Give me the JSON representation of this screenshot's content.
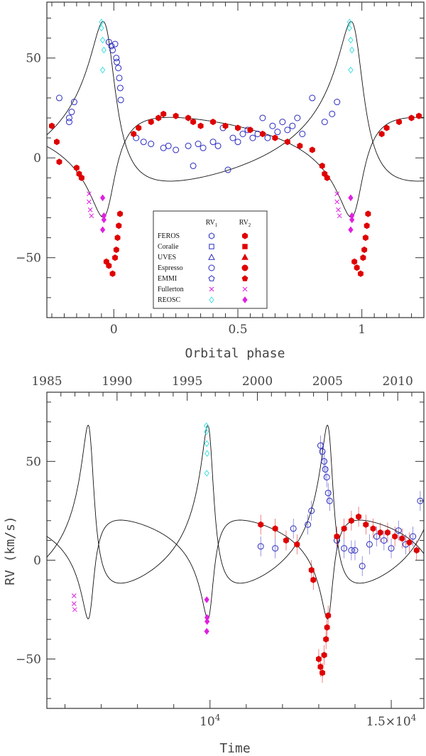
{
  "colors": {
    "blue": "#2a2ac0",
    "red": "#e00000",
    "magenta": "#e020e0",
    "cyan": "#40e0e0",
    "axis": "#333333",
    "curve": "#111111"
  },
  "chart_data": [
    {
      "type": "scatter",
      "id": "phase",
      "title": "",
      "xlabel": "Orbital phase",
      "ylabel": "",
      "xlim": [
        -0.27,
        1.25
      ],
      "ylim": [
        -80,
        78
      ],
      "xticks": [
        0,
        0.5,
        1
      ],
      "xtick_labels": [
        "0",
        "0.5",
        "1"
      ],
      "yticks": [
        -50,
        0,
        50
      ],
      "ytick_labels": [
        "−50",
        "0",
        "50"
      ],
      "legend": {
        "position": "bottom-center",
        "col1_header": "RV",
        "col1_sub": "1",
        "col2_header": "RV",
        "col2_sub": "2",
        "entries": [
          {
            "name": "FEROS",
            "shape": "hexagon",
            "color": "blue",
            "color2": "red"
          },
          {
            "name": "Coralie",
            "shape": "square",
            "color": "blue",
            "color2": "red"
          },
          {
            "name": "UVES",
            "shape": "triangle",
            "color": "blue",
            "color2": "red"
          },
          {
            "name": "Espresso",
            "shape": "circle",
            "color": "blue",
            "color2": "red"
          },
          {
            "name": "EMMI",
            "shape": "pentagon",
            "color": "blue",
            "color2": "red"
          },
          {
            "name": "Fullerton",
            "shape": "cross",
            "color": "magenta",
            "color2": "magenta"
          },
          {
            "name": "REOSC",
            "shape": "diamond",
            "color": "cyan",
            "color2": "magenta"
          }
        ]
      },
      "series": [
        {
          "name": "RV1",
          "color": "blue",
          "filled": false,
          "points": [
            [
              -0.22,
              30
            ],
            [
              -0.18,
              20
            ],
            [
              -0.18,
              18
            ],
            [
              -0.17,
              23
            ],
            [
              -0.16,
              28
            ],
            [
              -0.02,
              58
            ],
            [
              -0.01,
              56
            ],
            [
              -0.005,
              54
            ],
            [
              0.005,
              57
            ],
            [
              0.01,
              50
            ],
            [
              0.012,
              48
            ],
            [
              0.018,
              45
            ],
            [
              0.022,
              40
            ],
            [
              0.026,
              35
            ],
            [
              0.028,
              29
            ],
            [
              0.09,
              10
            ],
            [
              0.12,
              8
            ],
            [
              0.15,
              7
            ],
            [
              0.2,
              5
            ],
            [
              0.22,
              6
            ],
            [
              0.25,
              4
            ],
            [
              0.3,
              6
            ],
            [
              0.32,
              -4
            ],
            [
              0.34,
              7
            ],
            [
              0.36,
              5
            ],
            [
              0.4,
              8
            ],
            [
              0.42,
              6
            ],
            [
              0.44,
              15
            ],
            [
              0.46,
              -6
            ],
            [
              0.48,
              10
            ],
            [
              0.5,
              8
            ],
            [
              0.52,
              12
            ],
            [
              0.54,
              14
            ],
            [
              0.56,
              10
            ],
            [
              0.58,
              12
            ],
            [
              0.6,
              20
            ],
            [
              0.62,
              10
            ],
            [
              0.64,
              16
            ],
            [
              0.66,
              13
            ],
            [
              0.68,
              18
            ],
            [
              0.7,
              14
            ],
            [
              0.72,
              16
            ],
            [
              0.74,
              20
            ],
            [
              0.76,
              12
            ],
            [
              0.8,
              30
            ],
            [
              0.85,
              18
            ],
            [
              0.88,
              22
            ],
            [
              0.9,
              28
            ]
          ]
        },
        {
          "name": "RV2",
          "color": "red",
          "filled": true,
          "points": [
            [
              -0.25,
              16
            ],
            [
              -0.23,
              8
            ],
            [
              -0.22,
              -2
            ],
            [
              -0.15,
              -5
            ],
            [
              -0.14,
              -8
            ],
            [
              -0.13,
              -10
            ],
            [
              -0.03,
              -52
            ],
            [
              -0.02,
              -54
            ],
            [
              -0.005,
              -58
            ],
            [
              0.005,
              -50
            ],
            [
              0.01,
              -46
            ],
            [
              0.015,
              -40
            ],
            [
              0.02,
              -34
            ],
            [
              0.025,
              -28
            ],
            [
              0.08,
              12
            ],
            [
              0.1,
              15
            ],
            [
              0.15,
              18
            ],
            [
              0.18,
              20
            ],
            [
              0.2,
              22
            ],
            [
              0.25,
              21
            ],
            [
              0.3,
              20
            ],
            [
              0.32,
              18
            ],
            [
              0.35,
              16
            ],
            [
              0.4,
              18
            ],
            [
              0.45,
              16
            ],
            [
              0.5,
              15
            ],
            [
              0.55,
              14
            ],
            [
              0.6,
              12
            ],
            [
              0.65,
              10
            ],
            [
              0.7,
              8
            ],
            [
              0.75,
              6
            ],
            [
              0.8,
              4
            ],
            [
              0.84,
              -4
            ],
            [
              0.85,
              -8
            ],
            [
              0.86,
              -10
            ],
            [
              0.97,
              -52
            ],
            [
              0.98,
              -55
            ],
            [
              0.995,
              -58
            ],
            [
              1.005,
              -50
            ],
            [
              1.01,
              -46
            ],
            [
              1.015,
              -40
            ],
            [
              1.02,
              -34
            ],
            [
              1.025,
              -28
            ],
            [
              1.08,
              12
            ],
            [
              1.1,
              15
            ],
            [
              1.15,
              18
            ],
            [
              1.2,
              20
            ],
            [
              1.23,
              21
            ]
          ]
        },
        {
          "name": "Fullerton",
          "color": "magenta",
          "shape": "cross",
          "points": [
            [
              -0.1,
              -18
            ],
            [
              -0.1,
              -22
            ],
            [
              -0.095,
              -26
            ],
            [
              -0.09,
              -29
            ],
            [
              0.9,
              -18
            ],
            [
              0.9,
              -22
            ],
            [
              0.905,
              -26
            ],
            [
              0.91,
              -29
            ]
          ]
        },
        {
          "name": "REOSC RV1",
          "color": "cyan",
          "shape": "diamond",
          "points": [
            [
              -0.05,
              68
            ],
            [
              -0.05,
              65
            ],
            [
              -0.045,
              59
            ],
            [
              -0.04,
              54
            ],
            [
              -0.045,
              44
            ],
            [
              0.95,
              68
            ],
            [
              0.95,
              65
            ],
            [
              0.955,
              59
            ],
            [
              0.96,
              54
            ],
            [
              0.955,
              44
            ]
          ]
        },
        {
          "name": "REOSC RV2",
          "color": "magenta",
          "shape": "diamond-filled",
          "points": [
            [
              -0.045,
              -20
            ],
            [
              -0.04,
              -29
            ],
            [
              -0.04,
              -31
            ],
            [
              -0.045,
              -36
            ],
            [
              0.955,
              -20
            ],
            [
              0.96,
              -29
            ],
            [
              0.96,
              -31
            ],
            [
              0.955,
              -36
            ]
          ]
        }
      ]
    },
    {
      "type": "scatter",
      "id": "time",
      "title": "",
      "xlabel": "Time",
      "ylabel": "RV (km/s)",
      "xlim": [
        5500,
        15900
      ],
      "ylim": [
        -75,
        85
      ],
      "xticks": [
        10000,
        15000
      ],
      "xtick_labels": [
        "10",
        "1.5×10"
      ],
      "xtick_exponent": "4",
      "top_ticks": [
        1985,
        1990,
        1995,
        2000,
        2005,
        2010
      ],
      "top_tick_labels": [
        "1985",
        "1990",
        "1995",
        "2000",
        "2005",
        "2010"
      ],
      "yticks": [
        -50,
        0,
        50
      ],
      "ytick_labels": [
        "−50",
        "0",
        "50"
      ],
      "series": [
        {
          "name": "RV1",
          "color": "blue",
          "filled": false,
          "points": [
            [
              11400,
              7
            ],
            [
              11800,
              6
            ],
            [
              12300,
              16
            ],
            [
              12700,
              18
            ],
            [
              12800,
              25
            ],
            [
              13050,
              58
            ],
            [
              13100,
              55
            ],
            [
              13150,
              50
            ],
            [
              13180,
              46
            ],
            [
              13220,
              42
            ],
            [
              13260,
              34
            ],
            [
              13300,
              30
            ],
            [
              13500,
              10
            ],
            [
              13700,
              6
            ],
            [
              13900,
              5
            ],
            [
              14000,
              5
            ],
            [
              14200,
              -3
            ],
            [
              14400,
              8
            ],
            [
              14600,
              12
            ],
            [
              14800,
              10
            ],
            [
              15000,
              6
            ],
            [
              15200,
              15
            ],
            [
              15400,
              8
            ],
            [
              15600,
              12
            ],
            [
              15800,
              30
            ]
          ]
        },
        {
          "name": "RV2",
          "color": "red",
          "filled": true,
          "points": [
            [
              11400,
              18
            ],
            [
              11800,
              16
            ],
            [
              12100,
              10
            ],
            [
              12400,
              8
            ],
            [
              12800,
              -5
            ],
            [
              12850,
              -10
            ],
            [
              13000,
              -50
            ],
            [
              13050,
              -54
            ],
            [
              13100,
              -57
            ],
            [
              13150,
              -48
            ],
            [
              13200,
              -40
            ],
            [
              13230,
              -34
            ],
            [
              13260,
              -28
            ],
            [
              13500,
              12
            ],
            [
              13700,
              16
            ],
            [
              13900,
              20
            ],
            [
              14100,
              22
            ],
            [
              14300,
              18
            ],
            [
              14500,
              16
            ],
            [
              14700,
              14
            ],
            [
              14900,
              14
            ],
            [
              15100,
              12
            ],
            [
              15300,
              11
            ],
            [
              15500,
              9
            ],
            [
              15700,
              5
            ]
          ]
        },
        {
          "name": "Fullerton",
          "color": "magenta",
          "shape": "cross",
          "points": [
            [
              6250,
              -18
            ],
            [
              6250,
              -22
            ],
            [
              6270,
              -25
            ]
          ]
        },
        {
          "name": "REOSC RV1",
          "color": "cyan",
          "shape": "diamond",
          "points": [
            [
              9900,
              68
            ],
            [
              9900,
              65
            ],
            [
              9910,
              59
            ],
            [
              9920,
              54
            ],
            [
              9910,
              44
            ]
          ]
        },
        {
          "name": "REOSC RV2",
          "color": "magenta",
          "shape": "diamond-filled",
          "points": [
            [
              9910,
              -20
            ],
            [
              9920,
              -29
            ],
            [
              9920,
              -31
            ],
            [
              9910,
              -36
            ]
          ]
        }
      ]
    }
  ]
}
